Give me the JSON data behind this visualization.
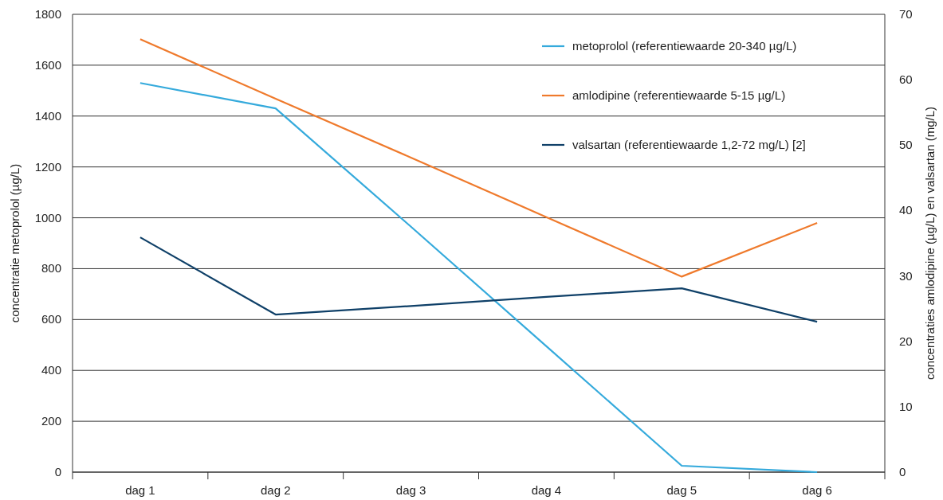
{
  "chart_data": {
    "type": "line",
    "categories": [
      "dag 1",
      "dag 2",
      "dag 3",
      "dag 4",
      "dag 5",
      "dag 6"
    ],
    "ylabel": "concentratie metoprolol (µg/L)",
    "y2label": "concentraties amlodipine (µg/L) en valsartan (mg/L)",
    "ylim": [
      0,
      1800
    ],
    "yticks": [
      0,
      200,
      400,
      600,
      800,
      1000,
      1200,
      1400,
      1600,
      1800
    ],
    "y2lim": [
      0,
      70
    ],
    "y2ticks": [
      0,
      10,
      20,
      30,
      40,
      50,
      60,
      70
    ],
    "grid": "y",
    "legend": "top right",
    "line_style": "solid",
    "marker": "none",
    "series": [
      {
        "name": "metoprolol (referentiewaarde 20-340 µg/L)",
        "color": "#35aadc",
        "values": [
          1530,
          1430,
          965,
          495,
          25,
          0
        ]
      },
      {
        "name": "amlodipine (referentiewaarde 5-15 µg/L)",
        "color": "#ef7a2c",
        "values": [
          66.2,
          57.1,
          48.1,
          39,
          29.9,
          38.1
        ],
        "axis": "y2"
      },
      {
        "name": "valsartan (referentiewaarde 1,2-72 mg/L) [2]",
        "color": "#0f4068",
        "values": [
          35.9,
          24.1,
          25.4,
          26.8,
          28.1,
          23
        ],
        "axis": "y2"
      }
    ]
  }
}
